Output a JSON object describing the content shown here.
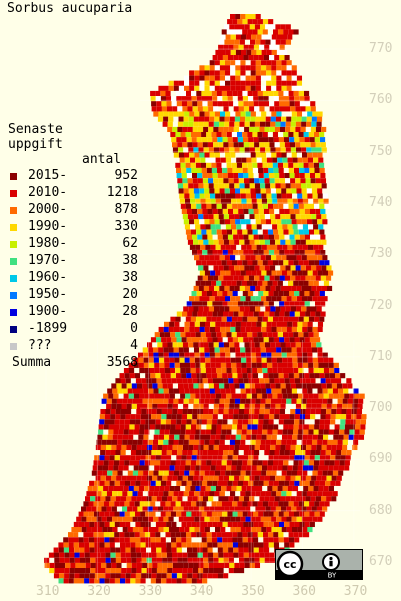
{
  "title": "Sorbus aucuparia",
  "legend": {
    "heading": [
      "Senaste",
      "uppgift"
    ],
    "count_header": "antal",
    "rows": [
      {
        "label": "2015-",
        "count": "952",
        "color": "#8b0000"
      },
      {
        "label": "2010-",
        "count": "1218",
        "color": "#d90000"
      },
      {
        "label": "2000-",
        "count": "878",
        "color": "#ff6a00"
      },
      {
        "label": "1990-",
        "count": "330",
        "color": "#ffd800"
      },
      {
        "label": "1980-",
        "count": "62",
        "color": "#c8f000"
      },
      {
        "label": "1970-",
        "count": "38",
        "color": "#40e080"
      },
      {
        "label": "1960-",
        "count": "38",
        "color": "#00c8e8"
      },
      {
        "label": "1950-",
        "count": "20",
        "color": "#0078ff"
      },
      {
        "label": "1900-",
        "count": "28",
        "color": "#0000e0"
      },
      {
        "label": "-1899",
        "count": "0",
        "color": "#000080"
      },
      {
        "label": "???",
        "count": "4",
        "color": "#c8c8c8"
      }
    ],
    "total_label": "Summa",
    "total": "3568"
  },
  "y_axis_labels": [
    "770",
    "760",
    "750",
    "740",
    "730",
    "720",
    "710",
    "700",
    "690",
    "680",
    "670"
  ],
  "x_axis_labels": [
    "310",
    "320",
    "330",
    "340",
    "350",
    "360",
    "370"
  ],
  "license": {
    "name": "CC BY",
    "cc_text": "cc",
    "by_text": "BY"
  }
}
